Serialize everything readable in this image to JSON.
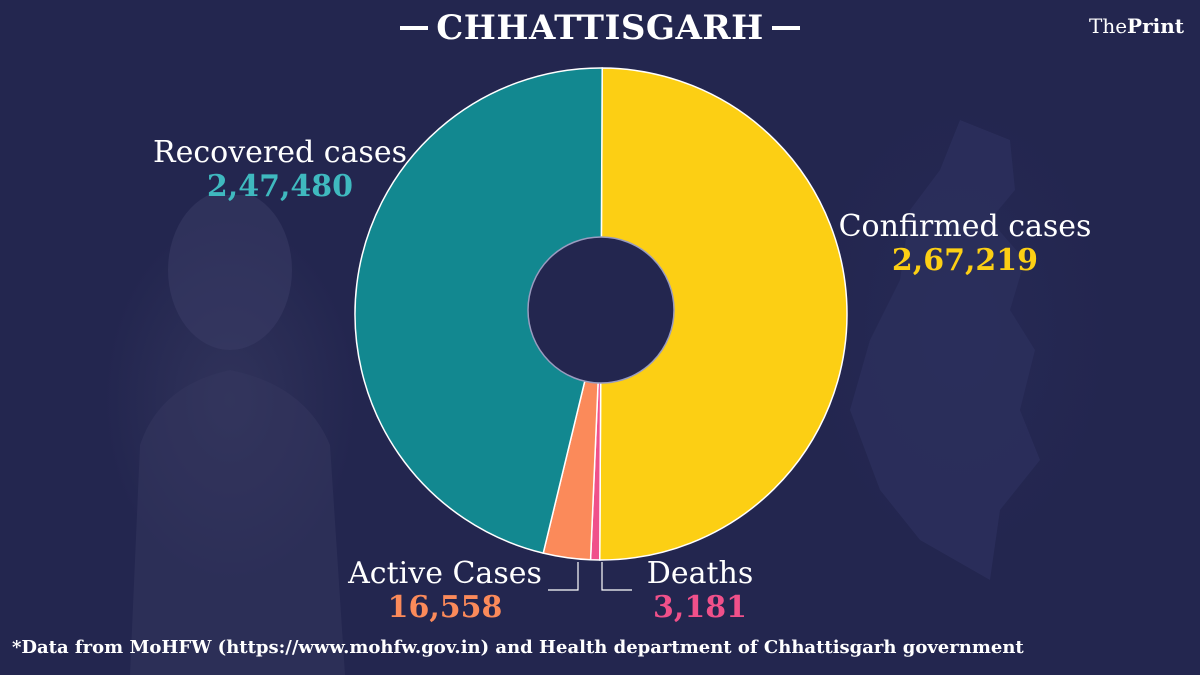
{
  "header": {
    "title": "CHHATTISGARH",
    "brand_prefix": "The",
    "brand_suffix": "Print"
  },
  "colors": {
    "background": "#23264f",
    "confirmed": "#fccf14",
    "recovered": "#128890",
    "active": "#fb8a5a",
    "deaths": "#f0508a",
    "recovered_value": "#3fb9bf",
    "confirmed_value": "#fccf14",
    "active_value": "#fb8a5a",
    "deaths_value": "#f0508a"
  },
  "labels": {
    "recovered": {
      "name": "Recovered cases",
      "value": "2,47,480"
    },
    "confirmed": {
      "name": "Confirmed cases",
      "value": "2,67,219"
    },
    "active": {
      "name": "Active Cases",
      "value": "16,558"
    },
    "deaths": {
      "name": "Deaths",
      "value": "3,181"
    }
  },
  "footer": {
    "note": "*Data from MoHFW (https://www.mohfw.gov.in)  and Health department of  Chhattisgarh  government"
  },
  "chart_data": {
    "type": "pie",
    "title": "CHHATTISGARH",
    "donut": true,
    "categories": [
      "Confirmed cases",
      "Recovered cases",
      "Active Cases",
      "Deaths"
    ],
    "values": [
      267219,
      247480,
      16558,
      3181
    ],
    "display_values": [
      "2,67,219",
      "2,47,480",
      "16,558",
      "3,181"
    ],
    "colors": [
      "#fccf14",
      "#128890",
      "#fb8a5a",
      "#f0508a"
    ],
    "legend": "none (direct labels around the chart)",
    "source": "*Data from MoHFW (https://www.mohfw.gov.in) and Health department of Chhattisgarh government"
  }
}
